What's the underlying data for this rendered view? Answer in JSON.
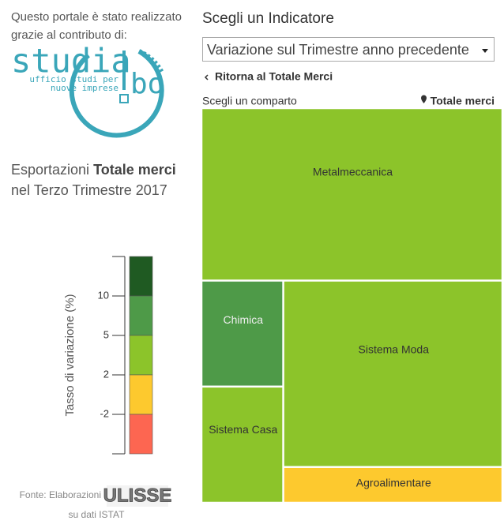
{
  "sidebar": {
    "intro_line1": "Questo portale è stato realizzato",
    "intro_line2": "grazie al contributo di:",
    "logo_word": "studia",
    "logo_suffix": "bo",
    "logo_tagline1": "ufficio studi per",
    "logo_tagline2": "nuove imprese",
    "heading_prefix": "Esportazioni",
    "heading_bold": "Totale merci",
    "heading_line2": "nel Terzo Trimestre 2017",
    "source_prefix": "Fonte: Elaborazioni",
    "source_logo": "ULISSE",
    "source_suffix": "su dati ISTAT"
  },
  "legend": {
    "title": "Tasso di variazione (%)",
    "bins": [
      "#1f5a22",
      "#4e9a48",
      "#8cc42a",
      "#fdc92e",
      "#fd6651"
    ],
    "ticks": [
      10,
      5,
      2,
      -2
    ]
  },
  "header": {
    "title": "Scegli un Indicatore",
    "selected": "Variazione sul Trimestre anno precedente",
    "back_link": "Ritorna al Totale Merci",
    "prompt": "Scegli un comparto",
    "current": "Totale merci"
  },
  "chart_data": {
    "type": "treemap",
    "categories": [
      "Metalmeccanica",
      "Chimica",
      "Sistema Casa",
      "Sistema Moda",
      "Agroalimentare"
    ],
    "values": [
      43.7,
      7.3,
      8.0,
      34.4,
      6.6
    ],
    "colors": [
      "#8cc42a",
      "#4e9a48",
      "#8cc42a",
      "#8cc42a",
      "#fdc92e"
    ]
  }
}
